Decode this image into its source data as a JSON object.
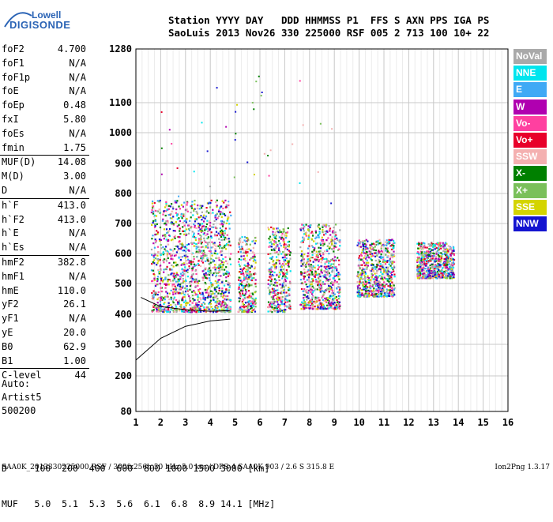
{
  "logo": {
    "line1": "Lowell",
    "line2": "DIGISONDE"
  },
  "header": {
    "row1": "Station YYYY DAY   DDD HHMMSS P1  FFS S AXN PPS IGA PS",
    "row2": "SaoLuis 2013 Nov26 330 225000 RSF 005 2 713 100 10+ 22"
  },
  "params": [
    {
      "name": "foF2",
      "value": "4.700"
    },
    {
      "name": "foF1",
      "value": "N/A"
    },
    {
      "name": "foF1p",
      "value": "N/A"
    },
    {
      "name": "foE",
      "value": "N/A"
    },
    {
      "name": "foEp",
      "value": "0.48"
    },
    {
      "name": "fxI",
      "value": "5.80"
    },
    {
      "name": "foEs",
      "value": "N/A"
    },
    {
      "name": "fmin",
      "value": "1.75"
    },
    {
      "name": "MUF(D)",
      "value": "14.08",
      "sep": true
    },
    {
      "name": "M(D)",
      "value": "3.00"
    },
    {
      "name": "D",
      "value": "N/A"
    },
    {
      "name": "h`F",
      "value": "413.0",
      "sep": true
    },
    {
      "name": "h`F2",
      "value": "413.0"
    },
    {
      "name": "h`E",
      "value": "N/A"
    },
    {
      "name": "h`Es",
      "value": "N/A"
    },
    {
      "name": "hmF2",
      "value": "382.8",
      "sep": true
    },
    {
      "name": "hmF1",
      "value": "N/A"
    },
    {
      "name": "hmE",
      "value": "110.0"
    },
    {
      "name": "yF2",
      "value": "26.1"
    },
    {
      "name": "yF1",
      "value": "N/A"
    },
    {
      "name": "yE",
      "value": "20.0"
    },
    {
      "name": "B0",
      "value": "62.9"
    },
    {
      "name": "B1",
      "value": "1.00"
    },
    {
      "name": "C-level",
      "value": "44",
      "sep": true
    }
  ],
  "auto": {
    "line1": "Auto:",
    "line2": "Artist5",
    "line3": "500200"
  },
  "legend": [
    {
      "label": "NoVal",
      "color": "#a9a9a9"
    },
    {
      "label": "NNE",
      "color": "#00e5ee"
    },
    {
      "label": "E",
      "color": "#3fa9f5"
    },
    {
      "label": "W",
      "color": "#b000b0"
    },
    {
      "label": "Vo-",
      "color": "#ff40a0"
    },
    {
      "label": "Vo+",
      "color": "#e8002a"
    },
    {
      "label": "SSW",
      "color": "#f4b0b0"
    },
    {
      "label": "X-",
      "color": "#008000"
    },
    {
      "label": "X+",
      "color": "#7ac05a"
    },
    {
      "label": "SSE",
      "color": "#d4d400"
    },
    {
      "label": "NNW",
      "color": "#1414d0"
    }
  ],
  "chart_data": {
    "type": "scatter",
    "x_ticks": [
      "1",
      "2",
      "3",
      "4",
      "5",
      "6",
      "7",
      "8",
      "9",
      "10",
      "11",
      "12",
      "13",
      "14",
      "15",
      "16"
    ],
    "y_ticks": [
      "80",
      "200",
      "300",
      "400",
      "500",
      "600",
      "700",
      "800",
      "900",
      "1000",
      "1100",
      "1280"
    ],
    "xlim": [
      1,
      16
    ],
    "y_scale": "piecewise (80–1280 km)",
    "grid": true,
    "legend_position": "right",
    "clusters": [
      {
        "x_range": [
          1.6,
          4.8
        ],
        "y_range": [
          410,
          780
        ],
        "dense": true
      },
      {
        "x_range": [
          5.1,
          5.8
        ],
        "y_range": [
          410,
          660
        ],
        "dense": true
      },
      {
        "x_range": [
          6.3,
          7.2
        ],
        "y_range": [
          410,
          690
        ],
        "dense": true
      },
      {
        "x_range": [
          7.6,
          9.2
        ],
        "y_range": [
          420,
          700
        ],
        "dense": true
      },
      {
        "x_range": [
          9.9,
          11.4
        ],
        "y_range": [
          460,
          650
        ],
        "dense": true
      },
      {
        "x_range": [
          12.3,
          13.8
        ],
        "y_range": [
          520,
          640
        ],
        "dense": true
      }
    ],
    "trace_lower": [
      [
        1.0,
        250
      ],
      [
        2.0,
        320
      ],
      [
        3.0,
        360
      ],
      [
        4.0,
        378
      ],
      [
        4.8,
        384
      ]
    ],
    "trace_upper": [
      [
        1.2,
        455
      ],
      [
        2.0,
        425
      ],
      [
        3.0,
        415
      ],
      [
        4.0,
        410
      ],
      [
        4.8,
        412
      ]
    ]
  },
  "footer": {
    "row1": "D     100  200  400  600  800 1000 1500 3000 [km]",
    "row2": "MUF   5.0  5.1  5.3  5.6  6.1  6.8  8.9 14.1 [MHz]",
    "info": "SAA0K_2013330225000.RSF / 300fx256h 50 kHz 5.0 km / DPS-4 SAA0K 903 / 2.6 S 315.8 E",
    "version": "Ion2Png 1.3.17"
  }
}
